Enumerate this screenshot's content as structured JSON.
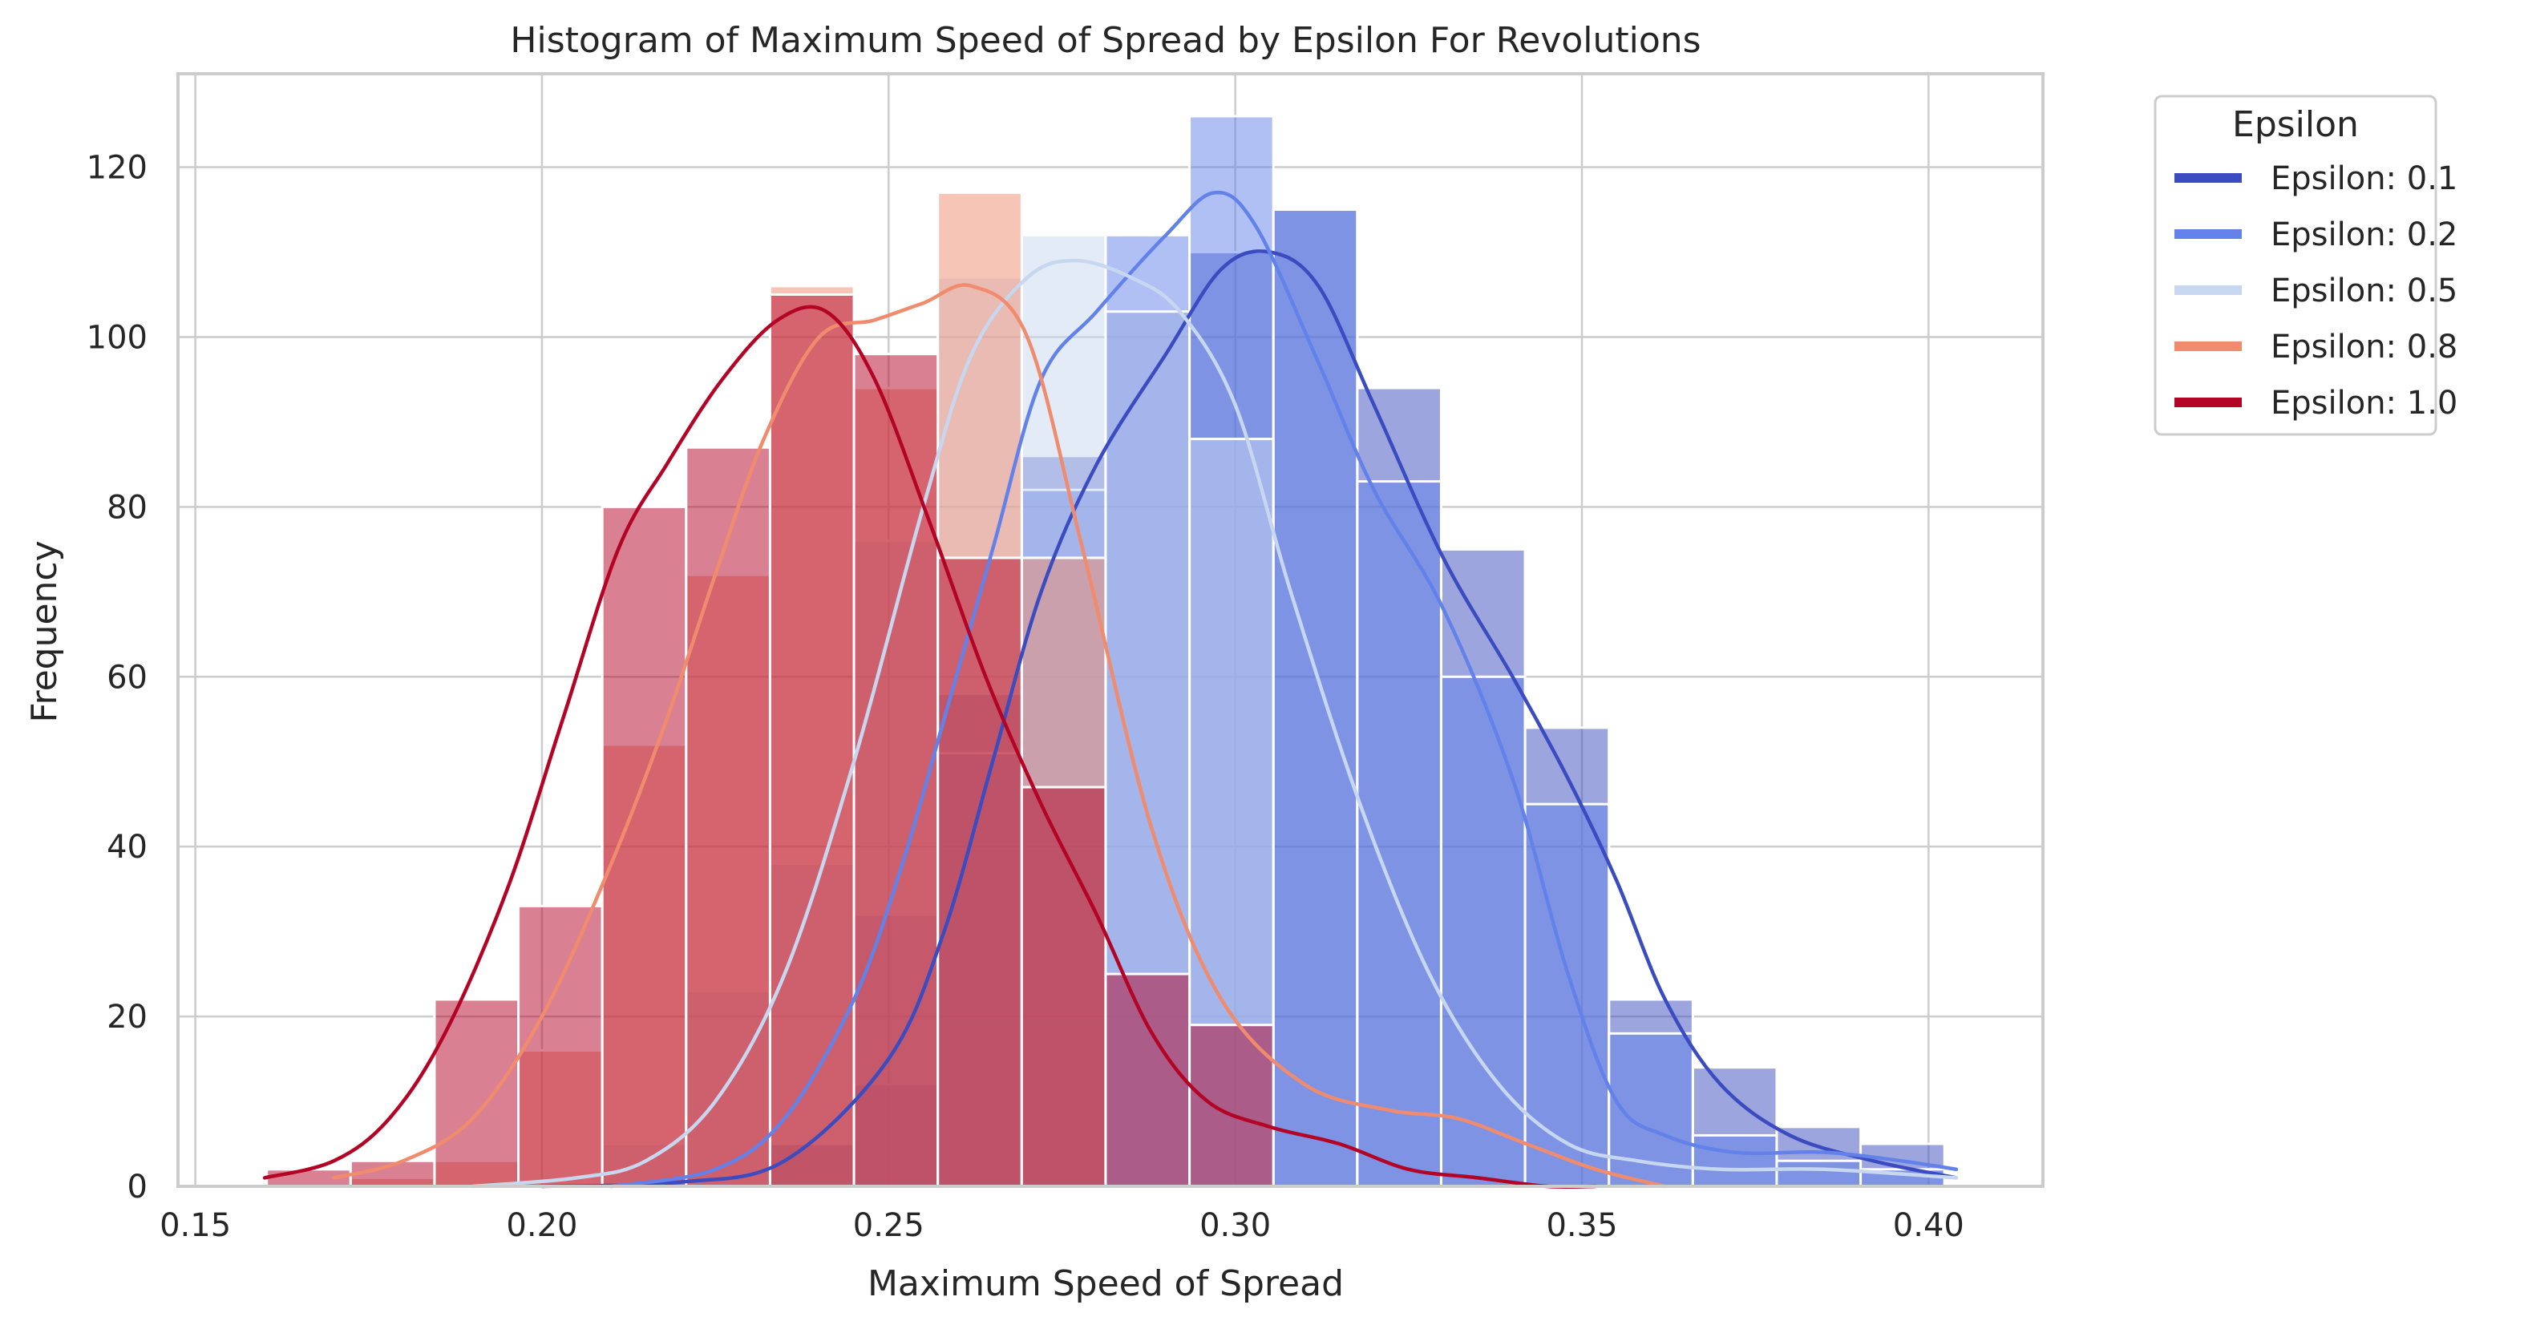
{
  "chart_data": {
    "type": "bar",
    "subtype": "overlaid-histogram-with-kde",
    "title": "Histogram of Maximum Speed of Spread by Epsilon For Revolutions",
    "xlabel": "Maximum Speed of Spread",
    "ylabel": "Frequency",
    "xlim": [
      0.1475,
      0.4165
    ],
    "ylim": [
      0,
      131
    ],
    "xticks": [
      "0.15",
      "0.20",
      "0.25",
      "0.30",
      "0.35",
      "0.40"
    ],
    "xtick_values": [
      0.15,
      0.2,
      0.25,
      0.3,
      0.35,
      0.4
    ],
    "yticks": [
      "0",
      "20",
      "40",
      "60",
      "80",
      "100",
      "120"
    ],
    "ytick_values": [
      0,
      20,
      40,
      60,
      80,
      100,
      120
    ],
    "grid": true,
    "legend": {
      "title": "Epsilon",
      "position": "outside-right-top"
    },
    "bin_edges": [
      0.1603,
      0.1724,
      0.1845,
      0.1966,
      0.2087,
      0.2208,
      0.2329,
      0.245,
      0.2571,
      0.2692,
      0.2813,
      0.2934,
      0.3055,
      0.3176,
      0.3297,
      0.3418,
      0.3539,
      0.366,
      0.3781,
      0.3902,
      0.4023
    ],
    "series": [
      {
        "name": "Epsilon: 0.1",
        "color": "#3b4cc0",
        "counts": [
          0,
          0,
          0,
          0,
          0,
          0,
          5,
          12,
          58,
          86,
          103,
          110,
          115,
          94,
          75,
          54,
          22,
          14,
          7,
          5
        ],
        "kde_x": [
          0.2,
          0.22,
          0.235,
          0.25,
          0.258,
          0.265,
          0.272,
          0.28,
          0.29,
          0.298,
          0.305,
          0.312,
          0.32,
          0.33,
          0.34,
          0.348,
          0.355,
          0.362,
          0.37,
          0.38,
          0.392,
          0.404
        ],
        "kde_y": [
          0,
          0.5,
          3,
          15,
          30,
          50,
          70,
          85,
          98,
          108,
          110,
          106,
          92,
          74,
          60,
          48,
          36,
          22,
          12,
          6,
          3,
          1
        ]
      },
      {
        "name": "Epsilon: 0.2",
        "color": "#6282ea",
        "counts": [
          0,
          0,
          0,
          0,
          0,
          0,
          0,
          32,
          51,
          82,
          112,
          126,
          115,
          83,
          60,
          45,
          18,
          6,
          3,
          2
        ],
        "kde_x": [
          0.21,
          0.225,
          0.235,
          0.245,
          0.252,
          0.258,
          0.265,
          0.272,
          0.28,
          0.29,
          0.297,
          0.303,
          0.312,
          0.32,
          0.33,
          0.34,
          0.348,
          0.355,
          0.362,
          0.372,
          0.385,
          0.396,
          0.404
        ],
        "kde_y": [
          0,
          2,
          8,
          22,
          38,
          55,
          75,
          95,
          103,
          112,
          117,
          113,
          97,
          82,
          68,
          48,
          25,
          10,
          6,
          4,
          4,
          3,
          2
        ]
      },
      {
        "name": "Epsilon: 0.5",
        "color": "#c7d7f0",
        "counts": [
          0,
          0,
          0,
          0,
          5,
          23,
          38,
          76,
          107,
          112,
          103,
          88,
          0,
          0,
          0,
          0,
          0,
          0,
          0,
          0
        ],
        "kde_x": [
          0.19,
          0.205,
          0.215,
          0.225,
          0.235,
          0.245,
          0.255,
          0.262,
          0.27,
          0.277,
          0.285,
          0.292,
          0.3,
          0.308,
          0.318,
          0.328,
          0.338,
          0.348,
          0.358,
          0.37,
          0.385,
          0.404
        ],
        "kde_y": [
          0,
          1,
          3,
          10,
          25,
          50,
          80,
          98,
          107,
          109,
          107,
          103,
          92,
          70,
          45,
          25,
          12,
          5,
          3,
          2,
          2,
          1
        ]
      },
      {
        "name": "Epsilon: 0.8",
        "color": "#f08b6e",
        "counts": [
          0,
          1,
          3,
          16,
          52,
          72,
          106,
          94,
          117,
          74,
          0,
          0,
          0,
          0,
          0,
          0,
          0,
          0,
          0,
          0
        ],
        "kde_x": [
          0.17,
          0.18,
          0.19,
          0.2,
          0.21,
          0.218,
          0.225,
          0.232,
          0.24,
          0.248,
          0.255,
          0.262,
          0.27,
          0.278,
          0.288,
          0.298,
          0.31,
          0.322,
          0.332,
          0.342,
          0.352,
          0.362
        ],
        "kde_y": [
          1,
          3,
          8,
          20,
          38,
          55,
          72,
          88,
          100,
          102,
          104,
          106,
          100,
          75,
          42,
          22,
          12,
          9,
          8,
          5,
          2,
          0
        ]
      },
      {
        "name": "Epsilon: 1.0",
        "color": "#b40426",
        "counts": [
          2,
          3,
          22,
          33,
          80,
          87,
          105,
          98,
          74,
          47,
          25,
          19,
          0,
          0,
          0,
          0,
          0,
          0,
          0,
          0
        ],
        "kde_x": [
          0.16,
          0.17,
          0.178,
          0.186,
          0.195,
          0.203,
          0.211,
          0.218,
          0.226,
          0.234,
          0.241,
          0.248,
          0.256,
          0.264,
          0.272,
          0.28,
          0.288,
          0.296,
          0.305,
          0.315,
          0.325,
          0.335,
          0.345,
          0.352
        ],
        "kde_y": [
          1,
          3,
          8,
          18,
          35,
          55,
          75,
          85,
          95,
          102,
          103,
          95,
          78,
          60,
          45,
          32,
          18,
          10,
          7,
          5,
          2,
          1,
          0,
          0
        ]
      }
    ]
  }
}
